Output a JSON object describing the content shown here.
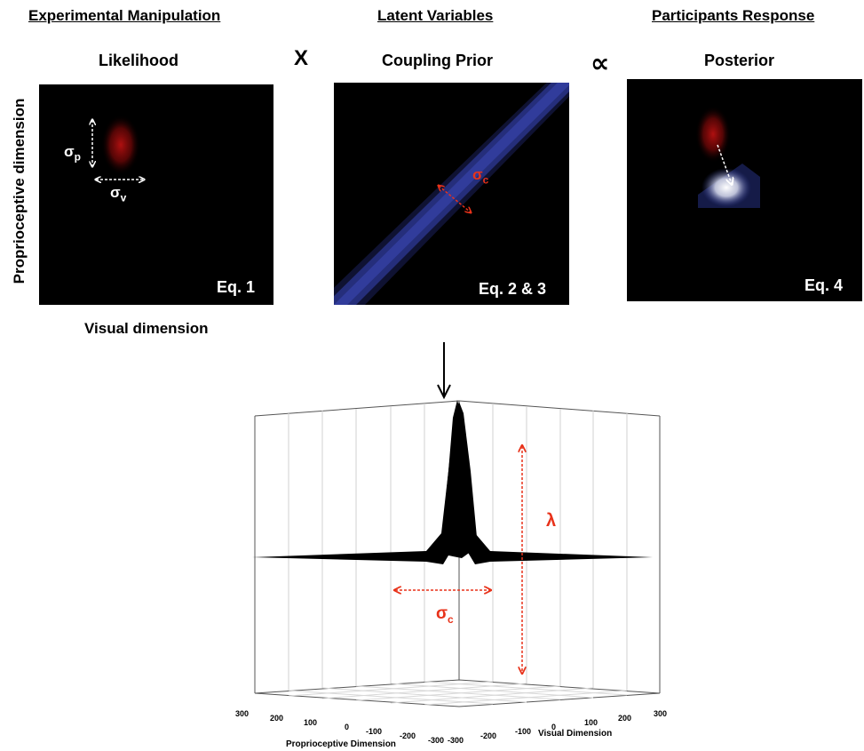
{
  "columns": {
    "experimental": {
      "header": "Experimental Manipulation",
      "title": "Likelihood",
      "equation": "Eq. 1"
    },
    "latent": {
      "header": "Latent Variables",
      "title": "Coupling Prior",
      "equation": "Eq. 2 & 3"
    },
    "response": {
      "header": "Participants Response",
      "title": "Posterior",
      "equation": "Eq. 4"
    }
  },
  "operators": {
    "times": "X",
    "proportional": "∝"
  },
  "axes": {
    "y_label": "Proprioceptive dimension",
    "x_label": "Visual dimension"
  },
  "likelihood_labels": {
    "sigma": "σ",
    "sub_p": "p",
    "sub_v": "v"
  },
  "prior_labels": {
    "sigma": "σ",
    "sub_c": "c"
  },
  "plot3d": {
    "lambda_label": "λ",
    "sigma": "σ",
    "sub_c": "c",
    "proprio_axis_label": "Proprioceptive Dimension",
    "visual_axis_label": "Visual Dimension",
    "proprio_ticks": [
      "300",
      "200",
      "100",
      "0",
      "-100",
      "-200",
      "-300"
    ],
    "visual_ticks": [
      "-300",
      "-200",
      "-100",
      "0",
      "100",
      "200",
      "300"
    ]
  },
  "colors": {
    "likelihood": "#b01010",
    "prior": "#2a3590",
    "annotation": "#e8321a",
    "panel_bg": "#000000"
  }
}
